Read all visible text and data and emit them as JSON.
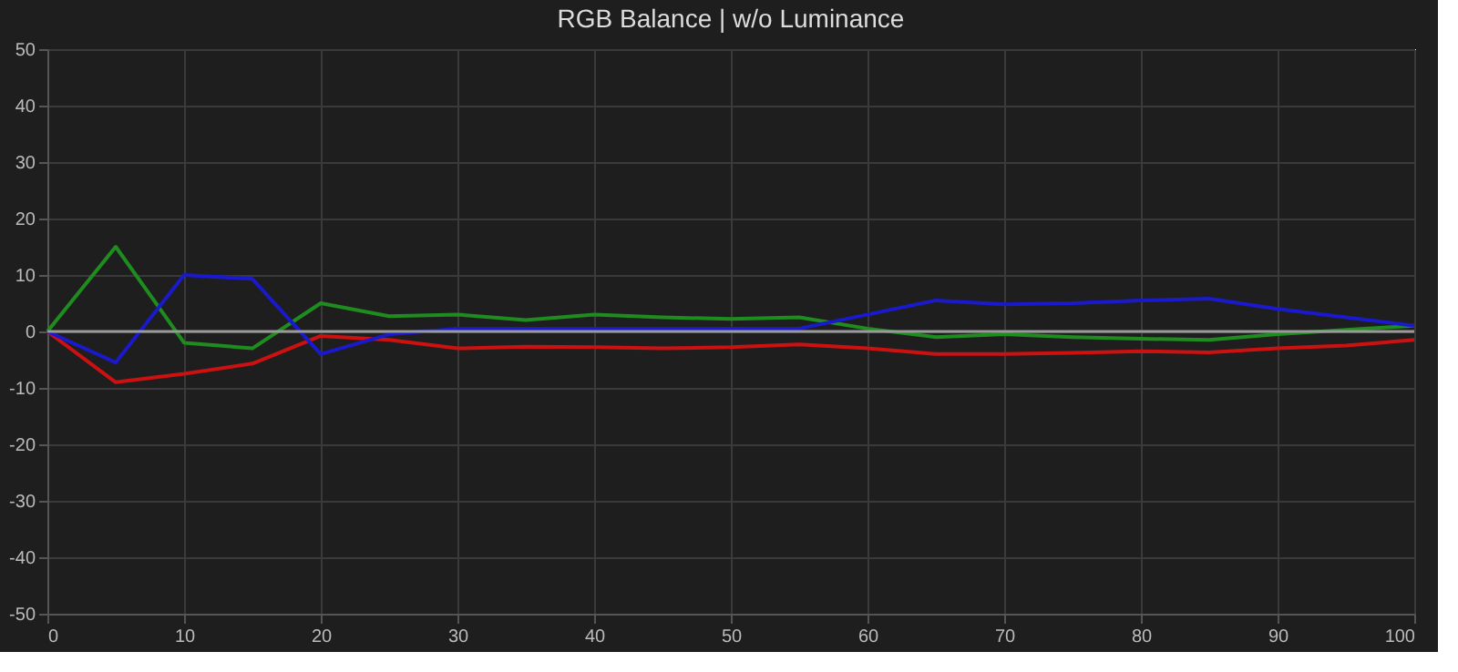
{
  "chart_data": {
    "type": "line",
    "title": "RGB Balance | w/o Luminance",
    "x": [
      0,
      5,
      10,
      15,
      20,
      25,
      30,
      35,
      40,
      45,
      50,
      55,
      60,
      65,
      70,
      75,
      80,
      85,
      90,
      95,
      100
    ],
    "series": [
      {
        "color": "#cc1111",
        "values": [
          0,
          -9,
          -7.5,
          -5.7,
          -0.8,
          -1.5,
          -3,
          -2.7,
          -2.8,
          -3,
          -2.8,
          -2.3,
          -3,
          -4,
          -4,
          -3.8,
          -3.5,
          -3.7,
          -3,
          -2.5,
          -1.5
        ]
      },
      {
        "color": "#1f8c1f",
        "values": [
          0,
          15,
          -2,
          -3,
          5,
          2.7,
          3,
          2,
          3,
          2.5,
          2.2,
          2.5,
          0.5,
          -1,
          -0.5,
          -1,
          -1.3,
          -1.5,
          -0.5,
          0.3,
          1
        ]
      },
      {
        "color": "#1a1acc",
        "values": [
          0,
          -5.5,
          10,
          9.3,
          -4,
          -0.5,
          0.5,
          0.5,
          0.5,
          0.5,
          0.5,
          0.5,
          3,
          5.5,
          4.8,
          5,
          5.5,
          5.8,
          4,
          2.5,
          1
        ]
      }
    ],
    "xlim": [
      0,
      100
    ],
    "xticks": [
      0,
      10,
      20,
      30,
      40,
      50,
      60,
      70,
      80,
      90,
      100
    ],
    "ylim": [
      -50,
      50
    ],
    "yticks": [
      -50,
      -40,
      -30,
      -20,
      -10,
      0,
      10,
      20,
      30,
      40,
      50
    ],
    "ref_lines": [
      {
        "axis": "y",
        "value": 0,
        "color": "#9a9a9a"
      }
    ],
    "grid": true,
    "marker": "none",
    "line_style": "solid"
  }
}
